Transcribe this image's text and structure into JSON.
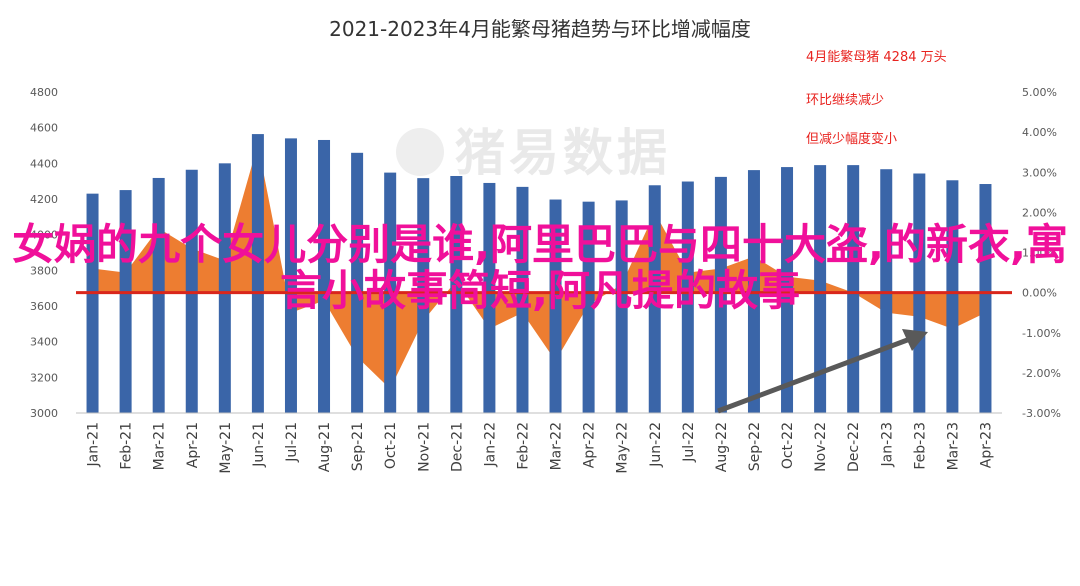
{
  "chart_data": {
    "type": "bar+area",
    "title": "2021-2023年4月能繁母猪趋势与环比增减幅度",
    "categories": [
      "Jan-21",
      "Feb-21",
      "Mar-21",
      "Apr-21",
      "May-21",
      "Jun-21",
      "Jul-21",
      "Aug-21",
      "Sep-21",
      "Oct-21",
      "Nov-21",
      "Dec-21",
      "Jan-22",
      "Feb-22",
      "Mar-22",
      "Apr-22",
      "May-22",
      "Jun-22",
      "Jul-22",
      "Aug-22",
      "Sep-22",
      "Oct-22",
      "Nov-22",
      "Dec-22",
      "Jan-23",
      "Feb-23",
      "Mar-23",
      "Apr-23"
    ],
    "left_axis": {
      "ylim": [
        3000,
        4800
      ],
      "ticks": [
        "3000",
        "3200",
        "3400",
        "3600",
        "3800",
        "4000",
        "4200",
        "4400",
        "4600",
        "4800"
      ]
    },
    "right_axis": {
      "ylim": [
        -3.0,
        5.0
      ],
      "ticks": [
        "-3.00%",
        "-2.00%",
        "-1.00%",
        "0.00%",
        "1.00%",
        "2.00%",
        "3.00%",
        "4.00%",
        "5.00%"
      ]
    },
    "series": [
      {
        "axis": "left",
        "type": "bar",
        "color": "#3a65a8",
        "values": [
          4230,
          4250,
          4318,
          4364,
          4400,
          4564,
          4540,
          4531,
          4459,
          4348,
          4317,
          4329,
          4290,
          4268,
          4197,
          4185,
          4192,
          4277,
          4298,
          4324,
          4362,
          4379,
          4390,
          4390,
          4367,
          4343,
          4305,
          4284
        ]
      },
      {
        "axis": "right",
        "type": "area",
        "color": "#ed7d31",
        "values": [
          0.6,
          0.5,
          1.6,
          1.1,
          0.8,
          3.7,
          -0.5,
          -0.2,
          -1.6,
          -2.4,
          -0.7,
          0.3,
          -0.9,
          -0.5,
          -1.7,
          -0.3,
          0.2,
          2.0,
          0.5,
          0.6,
          0.9,
          0.4,
          0.3,
          0.0,
          -0.5,
          -0.6,
          -0.9,
          -0.5
        ]
      }
    ],
    "reference_line": {
      "axis": "right",
      "value": 0,
      "color": "#d9261c"
    },
    "annotations": [
      "4月能繁母猪 4284 万头",
      "环比继续减少",
      "但减少幅度变小"
    ],
    "grid": false
  },
  "watermark": "猪易数据",
  "overlay_text": "女娲的九个女儿分别是谁,阿里巴巴与四十大盗,的新衣,寓言小故事简短,阿凡提的故事",
  "colors": {
    "bar": "#3a65a8",
    "area": "#ed7d31",
    "zero_line": "#d9261c",
    "overlay": "#f0109a",
    "annotation": "#e8231f",
    "arrow": "#595959"
  }
}
